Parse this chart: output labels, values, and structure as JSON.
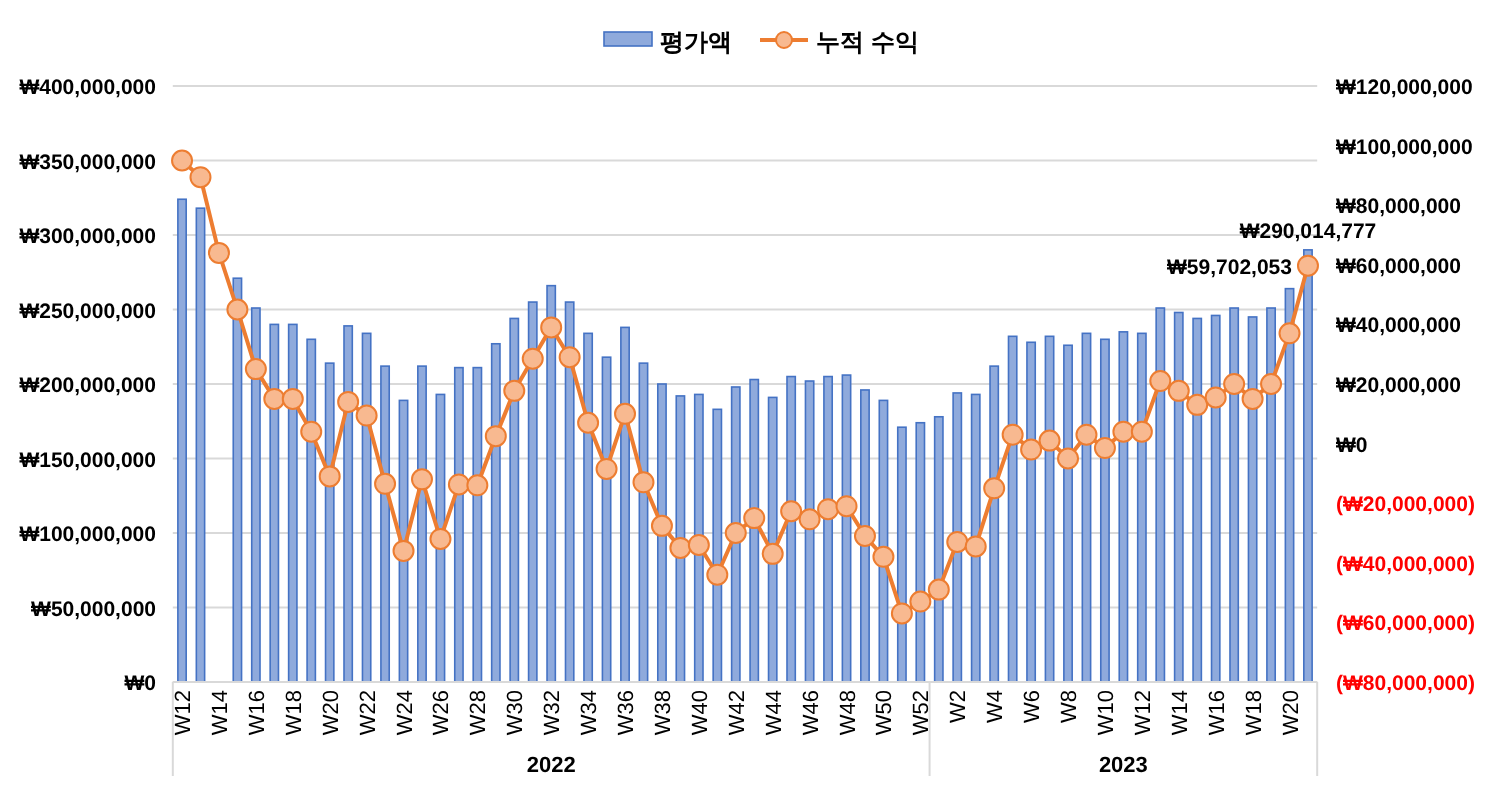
{
  "chart_data": {
    "type": "bar",
    "categories": [
      "W12",
      null,
      "W14",
      null,
      "W16",
      null,
      "W18",
      null,
      "W20",
      null,
      "W22",
      null,
      "W24",
      null,
      "W26",
      null,
      "W28",
      null,
      "W30",
      null,
      "W32",
      null,
      "W34",
      null,
      "W36",
      null,
      "W38",
      null,
      "W40",
      null,
      "W42",
      null,
      "W44",
      null,
      "W46",
      null,
      "W48",
      null,
      "W50",
      null,
      "W52",
      null,
      "W2",
      null,
      "W4",
      null,
      "W6",
      null,
      "W8",
      null,
      "W10",
      null,
      "W12",
      null,
      "W14",
      null,
      "W16",
      null,
      "W18",
      null,
      "W20",
      null
    ],
    "series": [
      {
        "name": "평가액",
        "color": "#8faadc",
        "values": [
          324000000,
          318000000,
          null,
          271000000,
          251000000,
          240000000,
          240000000,
          230000000,
          214000000,
          239000000,
          234000000,
          212000000,
          189000000,
          212000000,
          193000000,
          211000000,
          211000000,
          227000000,
          244000000,
          255000000,
          266000000,
          255000000,
          234000000,
          218000000,
          238000000,
          214000000,
          200000000,
          192000000,
          193000000,
          183000000,
          198000000,
          203000000,
          191000000,
          205000000,
          202000000,
          205000000,
          206000000,
          196000000,
          189000000,
          171000000,
          174000000,
          178000000,
          194000000,
          193000000,
          212000000,
          232000000,
          228000000,
          232000000,
          226000000,
          234000000,
          230000000,
          235000000,
          234000000,
          251000000,
          248000000,
          244000000,
          246000000,
          251000000,
          245000000,
          251000000,
          264000000,
          290014777
        ],
        "value_labels": [
          null,
          null,
          null,
          null,
          null,
          null,
          null,
          null,
          null,
          null,
          null,
          null,
          null,
          null,
          null,
          null,
          null,
          null,
          null,
          null,
          null,
          null,
          null,
          null,
          null,
          null,
          null,
          null,
          null,
          null,
          null,
          null,
          null,
          null,
          null,
          null,
          null,
          null,
          null,
          null,
          null,
          null,
          null,
          null,
          null,
          null,
          null,
          null,
          null,
          null,
          null,
          null,
          null,
          null,
          null,
          null,
          null,
          null,
          null,
          null,
          null,
          "₩290,014,777"
        ]
      },
      {
        "name": "누적 수익",
        "type": "line",
        "axis": "y2",
        "color": "#ed7d31",
        "marker": "circle",
        "values": [
          95000000,
          89400000,
          64000000,
          45000000,
          25000000,
          15000000,
          15000000,
          4000000,
          -11000000,
          14000000,
          9400000,
          -13500000,
          -36000000,
          -12000000,
          -32000000,
          -13700000,
          -14000000,
          2500000,
          17700000,
          28500000,
          39000000,
          29000000,
          7000000,
          -8500000,
          10000000,
          -13000000,
          -27600000,
          -35000000,
          -34000000,
          -44000000,
          -30000000,
          -25000000,
          -37000000,
          -22700000,
          -25400000,
          -22000000,
          -21000000,
          -31000000,
          -38000000,
          -57000000,
          -53000000,
          -49000000,
          -33000000,
          -34500000,
          -15000000,
          3000000,
          -2000000,
          1000000,
          -5000000,
          3000000,
          -1500000,
          4000000,
          4000000,
          21000000,
          17700000,
          13000000,
          15500000,
          20000000,
          15000000,
          20000000,
          37000000,
          59702053
        ],
        "value_labels": [
          null,
          null,
          null,
          null,
          null,
          null,
          null,
          null,
          null,
          null,
          null,
          null,
          null,
          null,
          null,
          null,
          null,
          null,
          null,
          null,
          null,
          null,
          null,
          null,
          null,
          null,
          null,
          null,
          null,
          null,
          null,
          null,
          null,
          null,
          null,
          null,
          null,
          null,
          null,
          null,
          null,
          null,
          null,
          null,
          null,
          null,
          null,
          null,
          null,
          null,
          null,
          null,
          null,
          null,
          null,
          null,
          null,
          null,
          null,
          null,
          null,
          "₩59,702,053"
        ]
      }
    ],
    "ylim": [
      0,
      400000000
    ],
    "yticks": [
      {
        "value": 0,
        "label": "₩0"
      },
      {
        "value": 50000000,
        "label": "₩50,000,000"
      },
      {
        "value": 100000000,
        "label": "₩100,000,000"
      },
      {
        "value": 150000000,
        "label": "₩150,000,000"
      },
      {
        "value": 200000000,
        "label": "₩200,000,000"
      },
      {
        "value": 250000000,
        "label": "₩250,000,000"
      },
      {
        "value": 300000000,
        "label": "₩300,000,000"
      },
      {
        "value": 350000000,
        "label": "₩350,000,000"
      },
      {
        "value": 400000000,
        "label": "₩400,000,000"
      }
    ],
    "y2lim": [
      -80000000,
      120000000
    ],
    "y2ticks": [
      {
        "value": -80000000,
        "label": "(₩80,000,000)"
      },
      {
        "value": -60000000,
        "label": "(₩60,000,000)"
      },
      {
        "value": -40000000,
        "label": "(₩40,000,000)"
      },
      {
        "value": -20000000,
        "label": "(₩20,000,000)"
      },
      {
        "value": 0,
        "label": "₩0"
      },
      {
        "value": 20000000,
        "label": "₩20,000,000"
      },
      {
        "value": 40000000,
        "label": "₩40,000,000"
      },
      {
        "value": 60000000,
        "label": "₩60,000,000"
      },
      {
        "value": 80000000,
        "label": "₩80,000,000"
      },
      {
        "value": 100000000,
        "label": "₩100,000,000"
      },
      {
        "value": 120000000,
        "label": "₩120,000,000"
      }
    ],
    "annotations": [
      "2022",
      "2023"
    ],
    "grid": "y",
    "legend": "top"
  }
}
